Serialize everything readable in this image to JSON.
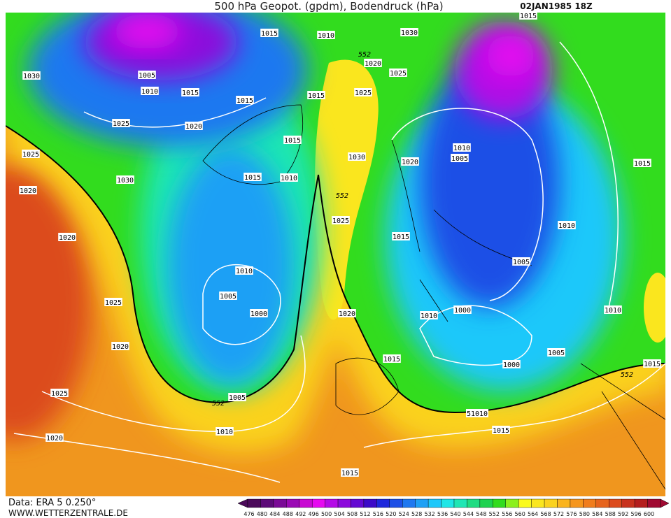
{
  "header": {
    "title": "500 hPa Geopot. (gpdm), Bodendruck (hPa)",
    "date": "02JAN1985 18Z"
  },
  "footer": {
    "source": "Data: ERA 5 0.250°",
    "site": "WWW.WETTERZENTRALE.DE"
  },
  "isobar_labels": [
    "1015",
    "1010",
    "1030",
    "1015",
    "1030",
    "1005",
    "1010",
    "1015",
    "552",
    "1020",
    "1025",
    "1015",
    "1025",
    "1015",
    "1025",
    "1020",
    "1015",
    "1030",
    "1020",
    "1010",
    "1005",
    "1015",
    "1025",
    "1030",
    "1015",
    "1010",
    "552",
    "1020",
    "1025",
    "1010",
    "1020",
    "1015",
    "1010",
    "1005",
    "1005",
    "1025",
    "1000",
    "1020",
    "1010",
    "1000",
    "1010",
    "1020",
    "1015",
    "1005",
    "1000",
    "1015",
    "552",
    "1005",
    "552",
    "1025",
    "1010",
    "51010",
    "1015",
    "1020",
    "1015"
  ],
  "colorbar": {
    "levels": [
      476,
      480,
      484,
      488,
      492,
      496,
      500,
      504,
      508,
      512,
      516,
      520,
      524,
      528,
      532,
      536,
      540,
      544,
      548,
      552,
      556,
      560,
      564,
      568,
      572,
      576,
      580,
      584,
      588,
      592,
      596,
      600
    ],
    "colors": [
      "#4b0a5a",
      "#5c0a78",
      "#7a0a96",
      "#9a0ab4",
      "#c80ad2",
      "#e60af0",
      "#b40ae6",
      "#8c0adc",
      "#640ad2",
      "#3c0ac8",
      "#1e28dc",
      "#1e50e6",
      "#1e78f0",
      "#1ea0f5",
      "#1ec8fa",
      "#1ee6e6",
      "#1ee6b4",
      "#1edc82",
      "#1ed250",
      "#32dc1e",
      "#8cf01e",
      "#fafa1e",
      "#fae61e",
      "#fad21e",
      "#fab41e",
      "#f5961e",
      "#f07d1e",
      "#e6641e",
      "#dc4b1e",
      "#c8321e",
      "#b41e1e",
      "#a00a32"
    ]
  }
}
